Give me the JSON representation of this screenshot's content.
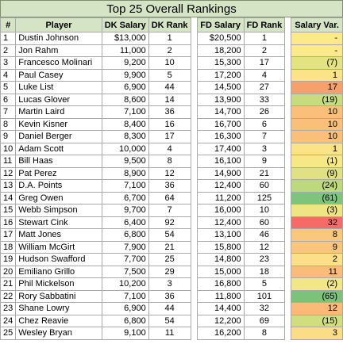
{
  "title": "Top 25 Overall Rankings",
  "columns": {
    "rank": "#",
    "player": "Player",
    "dk_salary": "DK Salary",
    "dk_rank": "DK Rank",
    "fd_salary": "FD Salary",
    "fd_rank": "FD Rank",
    "salary_var": "Salary Var."
  },
  "rows": [
    {
      "rank": "1",
      "player": "Dustin Johnson",
      "dk_salary": "$13,000",
      "dk_rank": "1",
      "fd_salary": "$20,500",
      "fd_rank": "1",
      "salary_var": "-",
      "var_color": "#fbe98a"
    },
    {
      "rank": "2",
      "player": "Jon Rahm",
      "dk_salary": "11,000",
      "dk_rank": "2",
      "fd_salary": "18,200",
      "fd_rank": "2",
      "salary_var": "-",
      "var_color": "#fbe98a"
    },
    {
      "rank": "3",
      "player": "Francesco Molinari",
      "dk_salary": "9,200",
      "dk_rank": "10",
      "fd_salary": "15,300",
      "fd_rank": "17",
      "salary_var": "(7)",
      "var_color": "#e4e382"
    },
    {
      "rank": "4",
      "player": "Paul Casey",
      "dk_salary": "9,900",
      "dk_rank": "5",
      "fd_salary": "17,200",
      "fd_rank": "4",
      "salary_var": "1",
      "var_color": "#fbe488"
    },
    {
      "rank": "5",
      "player": "Luke List",
      "dk_salary": "6,900",
      "dk_rank": "44",
      "fd_salary": "14,500",
      "fd_rank": "27",
      "salary_var": "17",
      "var_color": "#f8a06c"
    },
    {
      "rank": "6",
      "player": "Lucas Glover",
      "dk_salary": "8,600",
      "dk_rank": "14",
      "fd_salary": "13,900",
      "fd_rank": "33",
      "salary_var": "(19)",
      "var_color": "#c8db7e"
    },
    {
      "rank": "7",
      "player": "Martin Laird",
      "dk_salary": "7,100",
      "dk_rank": "36",
      "fd_salary": "14,700",
      "fd_rank": "26",
      "salary_var": "10",
      "var_color": "#fac07a"
    },
    {
      "rank": "8",
      "player": "Kevin Kisner",
      "dk_salary": "8,400",
      "dk_rank": "16",
      "fd_salary": "16,700",
      "fd_rank": "6",
      "salary_var": "10",
      "var_color": "#fac07a"
    },
    {
      "rank": "9",
      "player": "Daniel Berger",
      "dk_salary": "8,300",
      "dk_rank": "17",
      "fd_salary": "16,300",
      "fd_rank": "7",
      "salary_var": "10",
      "var_color": "#fac07a"
    },
    {
      "rank": "10",
      "player": "Adam Scott",
      "dk_salary": "10,000",
      "dk_rank": "4",
      "fd_salary": "17,400",
      "fd_rank": "3",
      "salary_var": "1",
      "var_color": "#fbe488"
    },
    {
      "rank": "11",
      "player": "Bill Haas",
      "dk_salary": "9,500",
      "dk_rank": "8",
      "fd_salary": "16,100",
      "fd_rank": "9",
      "salary_var": "(1)",
      "var_color": "#f6e787"
    },
    {
      "rank": "12",
      "player": "Pat Perez",
      "dk_salary": "8,900",
      "dk_rank": "12",
      "fd_salary": "14,900",
      "fd_rank": "21",
      "salary_var": "(9)",
      "var_color": "#e0e182"
    },
    {
      "rank": "13",
      "player": "D.A. Points",
      "dk_salary": "7,100",
      "dk_rank": "36",
      "fd_salary": "12,400",
      "fd_rank": "60",
      "salary_var": "(24)",
      "var_color": "#bed87e"
    },
    {
      "rank": "14",
      "player": "Greg Owen",
      "dk_salary": "6,700",
      "dk_rank": "64",
      "fd_salary": "11,200",
      "fd_rank": "125",
      "salary_var": "(61)",
      "var_color": "#7fc47c"
    },
    {
      "rank": "15",
      "player": "Webb Simpson",
      "dk_salary": "9,700",
      "dk_rank": "7",
      "fd_salary": "16,000",
      "fd_rank": "10",
      "salary_var": "(3)",
      "var_color": "#eee585"
    },
    {
      "rank": "16",
      "player": "Stewart Cink",
      "dk_salary": "6,400",
      "dk_rank": "92",
      "fd_salary": "12,400",
      "fd_rank": "60",
      "salary_var": "32",
      "var_color": "#f46c69"
    },
    {
      "rank": "17",
      "player": "Matt Jones",
      "dk_salary": "6,800",
      "dk_rank": "54",
      "fd_salary": "13,100",
      "fd_rank": "46",
      "salary_var": "8",
      "var_color": "#fbc77c"
    },
    {
      "rank": "18",
      "player": "William McGirt",
      "dk_salary": "7,900",
      "dk_rank": "21",
      "fd_salary": "15,800",
      "fd_rank": "12",
      "salary_var": "9",
      "var_color": "#fbc57c"
    },
    {
      "rank": "19",
      "player": "Hudson Swafford",
      "dk_salary": "7,700",
      "dk_rank": "25",
      "fd_salary": "14,800",
      "fd_rank": "23",
      "salary_var": "2",
      "var_color": "#fbe087"
    },
    {
      "rank": "20",
      "player": "Emiliano Grillo",
      "dk_salary": "7,500",
      "dk_rank": "29",
      "fd_salary": "15,000",
      "fd_rank": "18",
      "salary_var": "11",
      "var_color": "#fabd79"
    },
    {
      "rank": "21",
      "player": "Phil Mickelson",
      "dk_salary": "10,200",
      "dk_rank": "3",
      "fd_salary": "16,800",
      "fd_rank": "5",
      "salary_var": "(2)",
      "var_color": "#f2e686"
    },
    {
      "rank": "22",
      "player": "Rory Sabbatini",
      "dk_salary": "7,100",
      "dk_rank": "36",
      "fd_salary": "11,800",
      "fd_rank": "101",
      "salary_var": "(65)",
      "var_color": "#7bc37b"
    },
    {
      "rank": "23",
      "player": "Shane Lowry",
      "dk_salary": "6,900",
      "dk_rank": "44",
      "fd_salary": "14,400",
      "fd_rank": "32",
      "salary_var": "12",
      "var_color": "#fabb79"
    },
    {
      "rank": "24",
      "player": "Chez Reavie",
      "dk_salary": "6,800",
      "dk_rank": "54",
      "fd_salary": "12,200",
      "fd_rank": "69",
      "salary_var": "(15)",
      "var_color": "#d1de80"
    },
    {
      "rank": "25",
      "player": "Wesley Bryan",
      "dk_salary": "9,100",
      "dk_rank": "11",
      "fd_salary": "16,200",
      "fd_rank": "8",
      "salary_var": "3",
      "var_color": "#fbdd86"
    }
  ]
}
